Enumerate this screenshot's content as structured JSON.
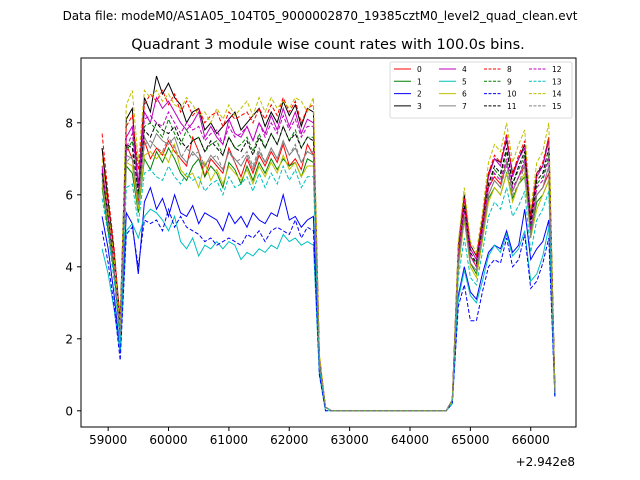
{
  "chart_data": {
    "type": "line",
    "suptitle": "Data file: modeM0/AS1A05_104T05_9000002870_19385cztM0_level2_quad_clean.evt",
    "title": "Quadrant 3 module wise count rates with 100.0s bins.",
    "xlabel": "",
    "ylabel": "",
    "x_offset_label": "+2.942e8",
    "xlim": [
      58550,
      66750
    ],
    "ylim": [
      -0.45,
      9.8
    ],
    "xticks": [
      59000,
      60000,
      61000,
      62000,
      63000,
      64000,
      65000,
      66000
    ],
    "xtick_labels": [
      "59000",
      "60000",
      "61000",
      "62000",
      "63000",
      "64000",
      "65000",
      "66000"
    ],
    "yticks": [
      0,
      2,
      4,
      6,
      8
    ],
    "ytick_labels": [
      "0",
      "2",
      "4",
      "6",
      "8"
    ],
    "grid": false,
    "legend_position": "top-right",
    "time_bins": {
      "first_bin_center": 58900,
      "bin_width": 100,
      "count": 76,
      "note_gap": "rates are ~0 between 62600 and 64900"
    },
    "series": [
      {
        "name": "0",
        "color": "#ff0000",
        "dashed": false,
        "seg1": [
          7.3,
          5.5,
          4.2,
          2.3,
          7.4,
          7.0,
          5.8,
          7.5,
          7.0,
          7.3,
          7.1,
          7.5,
          7.2,
          7.0,
          6.8,
          7.6,
          7.2,
          6.5,
          7.0,
          6.8,
          6.6,
          7.3,
          6.9,
          6.5,
          7.0,
          6.6,
          7.1,
          6.8,
          7.2,
          6.9,
          7.4,
          6.8,
          7.0,
          6.7,
          7.4,
          7.1,
          1.4,
          0.1
        ],
        "seg2": [
          0.3,
          4.2,
          5.6,
          4.3,
          4.0,
          5.0,
          6.2,
          6.5,
          6.3,
          6.9,
          6.1,
          6.5,
          6.8,
          5.0,
          6.0,
          6.2,
          6.6,
          0.6
        ]
      },
      {
        "name": "1",
        "color": "#008000",
        "dashed": false,
        "seg1": [
          6.2,
          5.0,
          3.8,
          2.0,
          6.8,
          6.6,
          5.5,
          7.0,
          6.7,
          7.2,
          6.9,
          7.3,
          7.0,
          6.6,
          6.4,
          6.8,
          7.0,
          6.5,
          6.8,
          6.6,
          6.2,
          6.9,
          6.7,
          6.3,
          6.8,
          6.4,
          6.9,
          6.6,
          7.0,
          6.7,
          7.0,
          6.8,
          6.9,
          6.5,
          7.0,
          6.9,
          1.3,
          0.1
        ],
        "seg2": [
          0.3,
          4.0,
          5.3,
          4.1,
          3.8,
          4.8,
          5.9,
          6.2,
          6.0,
          6.6,
          5.9,
          6.3,
          6.5,
          4.9,
          5.8,
          6.0,
          6.4,
          0.5
        ]
      },
      {
        "name": "2",
        "color": "#0000ff",
        "dashed": false,
        "seg1": [
          5.4,
          4.5,
          3.2,
          1.6,
          5.5,
          5.2,
          3.8,
          5.8,
          6.2,
          5.6,
          5.9,
          5.4,
          6.0,
          5.5,
          5.4,
          5.7,
          5.2,
          5.5,
          5.4,
          5.3,
          5.0,
          5.5,
          5.2,
          5.4,
          5.1,
          5.5,
          5.3,
          5.2,
          5.5,
          5.4,
          6.0,
          5.3,
          5.4,
          5.1,
          5.3,
          5.4,
          1.1,
          0.1
        ],
        "seg2": [
          0.2,
          3.2,
          4.0,
          3.3,
          3.1,
          3.8,
          4.4,
          4.6,
          4.5,
          5.0,
          4.4,
          4.6,
          5.6,
          4.2,
          4.5,
          4.7,
          5.3,
          0.4
        ]
      },
      {
        "name": "3",
        "color": "#000000",
        "dashed": false,
        "seg1": [
          7.3,
          5.8,
          4.4,
          2.5,
          8.1,
          8.4,
          6.2,
          8.7,
          8.3,
          9.3,
          8.8,
          9.1,
          8.7,
          8.5,
          8.0,
          8.3,
          8.4,
          7.8,
          8.0,
          7.7,
          7.9,
          8.1,
          8.3,
          7.8,
          8.0,
          8.2,
          8.4,
          7.9,
          8.3,
          8.0,
          8.6,
          8.2,
          8.5,
          7.9,
          8.4,
          8.3,
          1.5,
          0.1
        ],
        "seg2": [
          0.3,
          4.6,
          6.0,
          4.6,
          4.3,
          5.3,
          6.6,
          7.0,
          6.9,
          7.5,
          6.6,
          7.0,
          7.4,
          5.4,
          6.6,
          6.8,
          7.6,
          0.6
        ]
      },
      {
        "name": "4",
        "color": "#bf00bf",
        "dashed": false,
        "seg1": [
          6.8,
          5.4,
          4.0,
          2.2,
          7.6,
          7.9,
          6.3,
          8.3,
          8.0,
          8.7,
          8.4,
          8.6,
          8.3,
          8.0,
          7.8,
          8.0,
          8.3,
          7.6,
          7.9,
          7.6,
          7.4,
          8.1,
          7.7,
          7.6,
          7.9,
          7.5,
          8.0,
          7.7,
          8.2,
          7.8,
          8.4,
          7.9,
          8.3,
          7.7,
          8.1,
          8.0,
          1.5,
          0.1
        ],
        "seg2": [
          0.3,
          4.5,
          5.9,
          4.5,
          4.2,
          5.2,
          6.5,
          7.0,
          6.8,
          7.6,
          6.5,
          7.0,
          7.3,
          5.3,
          6.5,
          6.8,
          7.5,
          0.6
        ]
      },
      {
        "name": "5",
        "color": "#00bfbf",
        "dashed": false,
        "seg1": [
          4.5,
          3.8,
          2.8,
          1.6,
          5.0,
          5.2,
          4.8,
          5.4,
          5.6,
          5.5,
          5.3,
          5.0,
          5.4,
          4.7,
          4.5,
          4.8,
          4.3,
          4.6,
          4.5,
          4.7,
          4.5,
          4.7,
          4.6,
          4.2,
          4.4,
          4.3,
          4.5,
          4.4,
          4.6,
          4.5,
          4.9,
          4.7,
          4.8,
          4.6,
          4.7,
          4.6,
          1.0,
          0.0
        ],
        "seg2": [
          0.2,
          3.1,
          3.9,
          3.2,
          3.0,
          3.6,
          4.3,
          4.6,
          4.4,
          4.9,
          4.3,
          4.5,
          5.0,
          3.6,
          3.8,
          4.3,
          5.1,
          0.4
        ]
      },
      {
        "name": "6",
        "color": "#bfbf00",
        "dashed": false,
        "seg1": [
          6.3,
          5.2,
          3.9,
          2.1,
          6.9,
          6.8,
          5.6,
          7.1,
          7.2,
          7.0,
          7.2,
          6.9,
          7.4,
          6.7,
          6.5,
          6.6,
          6.2,
          6.9,
          6.4,
          6.7,
          6.3,
          6.8,
          6.6,
          6.4,
          6.7,
          6.3,
          6.8,
          6.5,
          6.9,
          6.6,
          7.1,
          6.7,
          6.9,
          6.5,
          6.8,
          6.8,
          1.3,
          0.1
        ],
        "seg2": [
          0.3,
          3.9,
          5.3,
          4.0,
          3.7,
          4.7,
          5.8,
          6.2,
          6.0,
          6.6,
          5.8,
          6.3,
          6.6,
          4.8,
          5.6,
          6.0,
          6.4,
          0.5
        ]
      },
      {
        "name": "7",
        "color": "#808080",
        "dashed": false,
        "seg1": [
          6.5,
          5.3,
          4.0,
          2.1,
          7.1,
          7.0,
          5.9,
          7.6,
          7.3,
          7.7,
          7.5,
          7.4,
          7.6,
          7.1,
          6.9,
          7.2,
          7.0,
          6.8,
          7.1,
          6.9,
          6.7,
          7.2,
          7.0,
          6.8,
          7.1,
          6.7,
          7.2,
          6.9,
          7.3,
          7.0,
          7.5,
          7.1,
          7.3,
          6.9,
          7.2,
          7.1,
          1.4,
          0.1
        ],
        "seg2": [
          0.3,
          4.1,
          5.4,
          4.1,
          3.9,
          4.9,
          6.0,
          6.4,
          6.2,
          6.9,
          6.1,
          6.5,
          6.9,
          4.9,
          6.0,
          6.2,
          6.8,
          0.5
        ]
      },
      {
        "name": "8",
        "color": "#ff0000",
        "dashed": true,
        "seg1": [
          7.7,
          6.0,
          4.5,
          2.4,
          7.9,
          8.2,
          6.7,
          8.5,
          8.8,
          8.6,
          8.9,
          8.5,
          8.8,
          8.3,
          8.6,
          8.2,
          8.4,
          8.0,
          8.2,
          8.3,
          7.9,
          8.3,
          8.1,
          8.2,
          8.3,
          8.0,
          8.4,
          8.1,
          8.5,
          8.2,
          8.7,
          8.3,
          8.6,
          8.0,
          8.4,
          8.5,
          1.5,
          0.1
        ],
        "seg2": [
          0.3,
          4.5,
          5.9,
          4.6,
          4.3,
          5.3,
          6.6,
          7.1,
          6.9,
          7.7,
          6.6,
          7.1,
          7.5,
          5.4,
          6.6,
          6.9,
          7.6,
          0.6
        ]
      },
      {
        "name": "9",
        "color": "#008000",
        "dashed": true,
        "seg1": [
          6.6,
          5.3,
          3.9,
          2.1,
          7.2,
          7.5,
          6.0,
          7.9,
          8.0,
          7.8,
          7.6,
          8.1,
          7.7,
          7.4,
          7.8,
          7.5,
          7.6,
          7.2,
          7.4,
          7.5,
          7.1,
          7.6,
          7.3,
          7.4,
          7.6,
          7.2,
          7.7,
          7.3,
          7.7,
          7.4,
          7.9,
          7.5,
          7.8,
          7.3,
          7.6,
          7.6,
          1.4,
          0.1
        ],
        "seg2": [
          0.3,
          4.3,
          5.6,
          4.3,
          4.1,
          5.1,
          6.3,
          6.7,
          6.5,
          7.2,
          6.3,
          6.7,
          7.1,
          5.1,
          6.3,
          6.5,
          7.1,
          0.5
        ]
      },
      {
        "name": "10",
        "color": "#0000ff",
        "dashed": true,
        "seg1": [
          5.0,
          4.1,
          2.9,
          1.4,
          4.9,
          5.1,
          4.0,
          5.3,
          5.2,
          5.3,
          5.0,
          5.6,
          5.1,
          5.4,
          5.1,
          5.0,
          4.9,
          4.7,
          4.8,
          4.6,
          4.7,
          4.8,
          4.7,
          4.6,
          4.9,
          4.8,
          5.0,
          4.7,
          5.0,
          5.1,
          5.0,
          4.9,
          5.3,
          4.8,
          5.1,
          5.0,
          1.0,
          0.0
        ],
        "seg2": [
          0.2,
          2.9,
          3.5,
          2.5,
          2.5,
          3.3,
          4.0,
          4.2,
          4.1,
          4.8,
          4.0,
          4.2,
          4.9,
          3.4,
          3.6,
          4.1,
          4.8,
          0.4
        ]
      },
      {
        "name": "11",
        "color": "#000000",
        "dashed": true,
        "seg1": [
          6.6,
          5.4,
          4.0,
          2.2,
          7.4,
          7.3,
          6.1,
          7.8,
          7.6,
          8.0,
          7.8,
          7.7,
          7.9,
          7.5,
          7.3,
          7.5,
          7.6,
          7.2,
          7.5,
          7.3,
          7.1,
          7.6,
          7.3,
          7.2,
          7.5,
          7.1,
          7.6,
          7.3,
          7.7,
          7.4,
          7.9,
          7.5,
          7.7,
          7.3,
          7.6,
          7.5,
          1.4,
          0.1
        ],
        "seg2": [
          0.3,
          4.3,
          5.7,
          4.4,
          4.1,
          5.1,
          6.3,
          6.8,
          6.6,
          7.3,
          6.3,
          6.8,
          7.2,
          5.2,
          6.4,
          6.6,
          7.3,
          0.6
        ]
      },
      {
        "name": "12",
        "color": "#bf00bf",
        "dashed": true,
        "seg1": [
          6.7,
          5.4,
          4.0,
          2.2,
          7.3,
          7.7,
          6.2,
          8.1,
          8.2,
          8.0,
          7.9,
          8.3,
          8.0,
          7.7,
          8.0,
          7.8,
          7.9,
          7.5,
          7.7,
          7.8,
          7.4,
          7.9,
          7.6,
          7.7,
          7.9,
          7.5,
          8.0,
          7.6,
          8.0,
          7.7,
          8.2,
          7.8,
          8.1,
          7.6,
          7.9,
          7.9,
          1.4,
          0.1
        ],
        "seg2": [
          0.3,
          4.3,
          5.6,
          4.3,
          4.0,
          5.0,
          6.2,
          6.6,
          6.4,
          7.0,
          6.2,
          6.5,
          7.0,
          5.0,
          6.2,
          6.4,
          7.0,
          0.5
        ]
      },
      {
        "name": "13",
        "color": "#00bfbf",
        "dashed": true,
        "seg1": [
          5.9,
          4.9,
          3.6,
          1.9,
          6.2,
          6.3,
          5.2,
          6.6,
          6.7,
          6.5,
          6.4,
          6.8,
          6.5,
          6.3,
          6.6,
          6.4,
          6.5,
          6.1,
          6.3,
          6.4,
          6.0,
          6.5,
          6.2,
          6.3,
          6.5,
          6.1,
          6.6,
          6.2,
          6.6,
          6.3,
          6.8,
          6.4,
          6.7,
          6.2,
          6.5,
          6.5,
          1.2,
          0.1
        ],
        "seg2": [
          0.2,
          3.7,
          4.8,
          3.7,
          3.5,
          4.4,
          5.4,
          5.8,
          5.6,
          6.2,
          5.4,
          5.7,
          6.1,
          4.4,
          5.3,
          5.6,
          6.1,
          0.5
        ]
      },
      {
        "name": "14",
        "color": "#bfbf00",
        "dashed": true,
        "seg1": [
          7.0,
          5.6,
          4.2,
          2.3,
          8.5,
          8.9,
          6.9,
          8.9,
          8.7,
          8.9,
          8.6,
          8.8,
          8.5,
          8.4,
          8.7,
          8.5,
          8.2,
          8.3,
          8.0,
          8.4,
          8.1,
          8.5,
          8.2,
          8.4,
          8.6,
          8.2,
          8.7,
          8.3,
          8.7,
          8.4,
          8.6,
          8.4,
          8.7,
          8.6,
          8.3,
          8.7,
          1.6,
          0.1
        ],
        "seg2": [
          0.3,
          4.7,
          6.2,
          4.7,
          4.4,
          5.5,
          6.9,
          7.4,
          7.2,
          8.0,
          6.9,
          7.4,
          7.8,
          5.6,
          6.9,
          7.2,
          8.0,
          0.6
        ]
      },
      {
        "name": "15",
        "color": "#808080",
        "dashed": true,
        "seg1": [
          6.4,
          5.2,
          3.9,
          2.1,
          6.9,
          7.1,
          5.7,
          7.4,
          7.5,
          7.3,
          7.2,
          7.6,
          7.3,
          7.0,
          7.3,
          7.1,
          7.2,
          6.8,
          7.0,
          7.1,
          6.7,
          7.2,
          6.9,
          7.0,
          7.2,
          6.8,
          7.3,
          6.9,
          7.3,
          7.0,
          7.5,
          7.1,
          7.4,
          6.9,
          7.2,
          7.2,
          1.3,
          0.1
        ],
        "seg2": [
          0.3,
          4.1,
          5.4,
          4.1,
          3.9,
          4.8,
          6.0,
          6.4,
          6.2,
          6.8,
          6.0,
          6.3,
          6.8,
          4.8,
          6.0,
          6.2,
          6.8,
          0.5
        ]
      }
    ]
  }
}
